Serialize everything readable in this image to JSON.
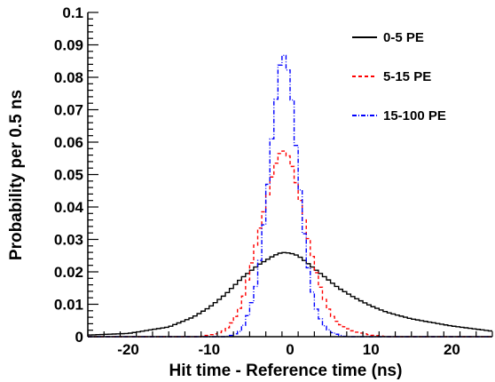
{
  "chart_data": {
    "type": "line",
    "xlabel": "Hit time - Reference time (ns)",
    "ylabel": "Probability per 0.5 ns",
    "xlim": [
      -25,
      25
    ],
    "ylim": [
      0,
      0.1
    ],
    "x_ticks": [
      -20,
      -10,
      0,
      10,
      20
    ],
    "y_ticks": [
      0,
      0.01,
      0.02,
      0.03,
      0.04,
      0.05,
      0.06,
      0.07,
      0.08,
      0.09,
      0.1
    ],
    "x_tick_labels": [
      "-20",
      "-10",
      "0",
      "10",
      "20"
    ],
    "y_tick_labels": [
      "0",
      "0.01",
      "0.02",
      "0.03",
      "0.04",
      "0.05",
      "0.06",
      "0.07",
      "0.08",
      "0.09",
      "0.1"
    ],
    "bin_width": 0.5,
    "grid": false,
    "legend_position": "top-right",
    "series": [
      {
        "name": "0-5 PE",
        "color": "#000000",
        "dash": "solid",
        "points": [
          [
            -25,
            0.0005
          ],
          [
            -20,
            0.001
          ],
          [
            -15,
            0.003
          ],
          [
            -12,
            0.006
          ],
          [
            -10,
            0.009
          ],
          [
            -8,
            0.013
          ],
          [
            -6,
            0.018
          ],
          [
            -4,
            0.022
          ],
          [
            -2,
            0.025
          ],
          [
            -1,
            0.026
          ],
          [
            0,
            0.0258
          ],
          [
            1,
            0.025
          ],
          [
            2,
            0.023
          ],
          [
            3,
            0.021
          ],
          [
            4,
            0.019
          ],
          [
            5,
            0.017
          ],
          [
            6,
            0.015
          ],
          [
            8,
            0.012
          ],
          [
            10,
            0.0095
          ],
          [
            12,
            0.0075
          ],
          [
            15,
            0.0055
          ],
          [
            20,
            0.0033
          ],
          [
            25,
            0.0017
          ]
        ]
      },
      {
        "name": "5-15 PE",
        "color": "#ff0000",
        "dash": "dashed",
        "points": [
          [
            -25,
            0
          ],
          [
            -11,
            0
          ],
          [
            -10,
            0.0005
          ],
          [
            -9,
            0.001
          ],
          [
            -8,
            0.002
          ],
          [
            -7,
            0.005
          ],
          [
            -6,
            0.01
          ],
          [
            -5,
            0.02
          ],
          [
            -4,
            0.031
          ],
          [
            -3,
            0.041
          ],
          [
            -2,
            0.052
          ],
          [
            -1,
            0.058
          ],
          [
            0,
            0.055
          ],
          [
            1,
            0.045
          ],
          [
            2,
            0.033
          ],
          [
            3,
            0.022
          ],
          [
            4,
            0.013
          ],
          [
            5,
            0.007
          ],
          [
            6,
            0.004
          ],
          [
            8,
            0.0015
          ],
          [
            10,
            0.0005
          ],
          [
            12,
            0
          ],
          [
            25,
            0
          ]
        ]
      },
      {
        "name": "15-100 PE",
        "color": "#0000ff",
        "dash": "dashdot",
        "points": [
          [
            -25,
            0
          ],
          [
            -8,
            0
          ],
          [
            -7,
            0.0005
          ],
          [
            -6,
            0.002
          ],
          [
            -5,
            0.008
          ],
          [
            -4,
            0.018
          ],
          [
            -3,
            0.04
          ],
          [
            -2,
            0.068
          ],
          [
            -1,
            0.089
          ],
          [
            0,
            0.08
          ],
          [
            1,
            0.052
          ],
          [
            2,
            0.025
          ],
          [
            3,
            0.01
          ],
          [
            4,
            0.004
          ],
          [
            5,
            0.0015
          ],
          [
            6,
            0.0005
          ],
          [
            7,
            0
          ],
          [
            25,
            0
          ]
        ]
      }
    ]
  }
}
